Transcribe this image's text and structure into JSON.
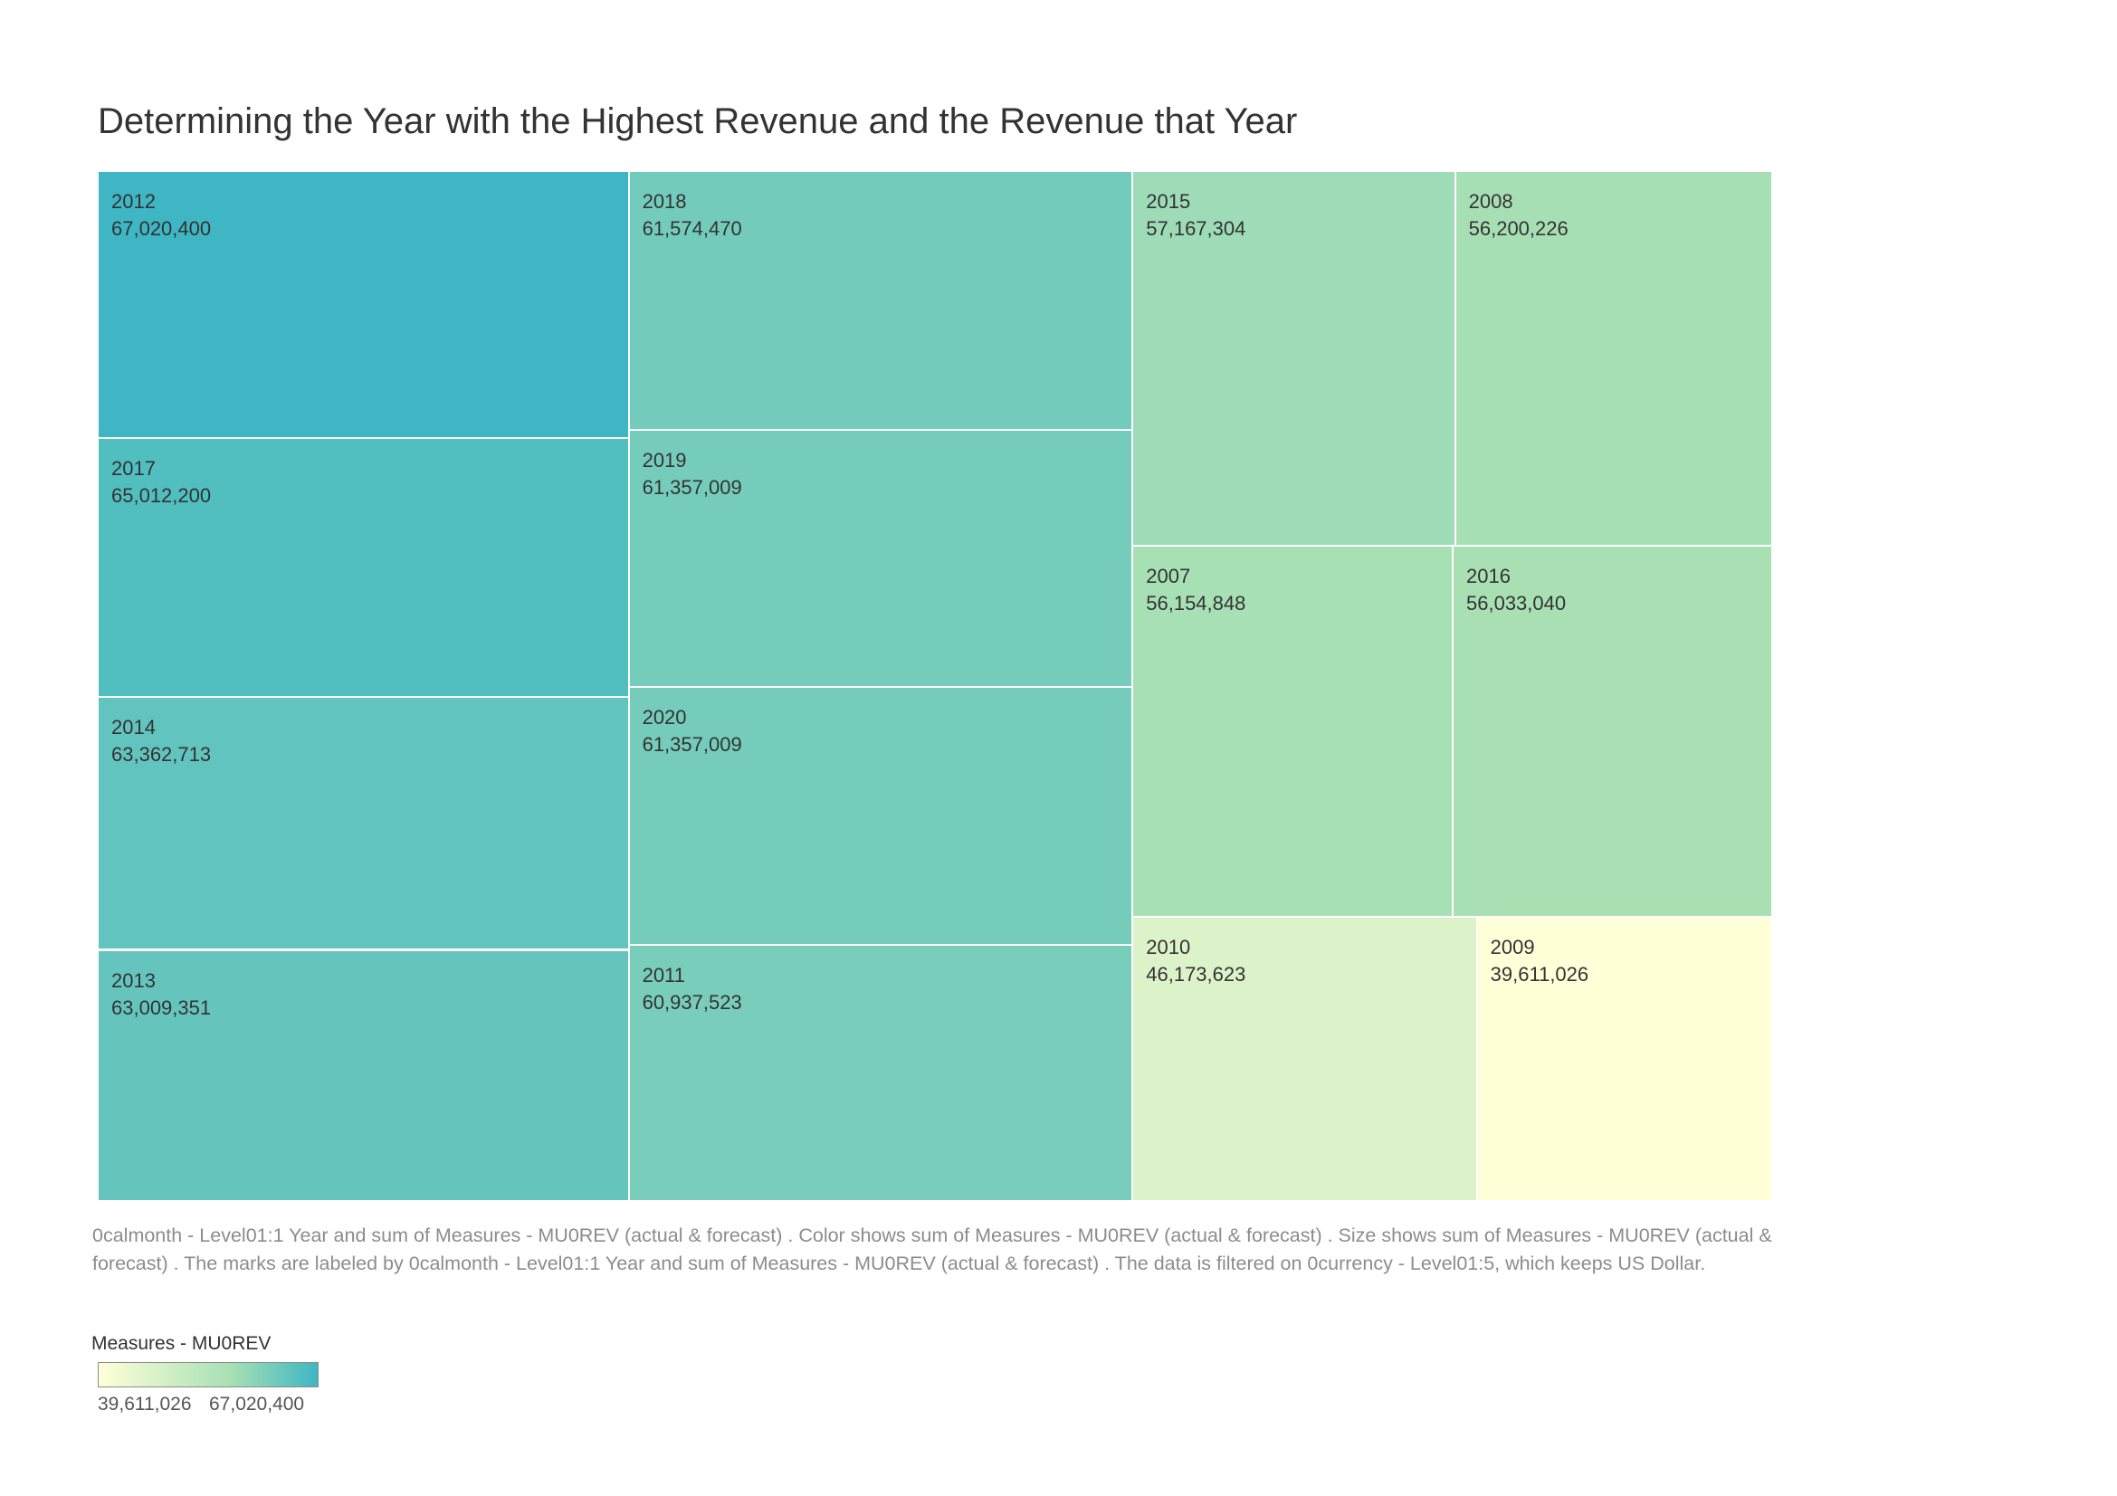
{
  "chart_data": {
    "type": "treemap",
    "title": "Determining the Year with the Highest Revenue and the Revenue that Year",
    "items": [
      {
        "year": "2012",
        "value": 67020400,
        "label": "67,020,400"
      },
      {
        "year": "2017",
        "value": 65012200,
        "label": "65,012,200"
      },
      {
        "year": "2014",
        "value": 63362713,
        "label": "63,362,713"
      },
      {
        "year": "2013",
        "value": 63009351,
        "label": "63,009,351"
      },
      {
        "year": "2018",
        "value": 61574470,
        "label": "61,574,470"
      },
      {
        "year": "2019",
        "value": 61357009,
        "label": "61,357,009"
      },
      {
        "year": "2020",
        "value": 61357009,
        "label": "61,357,009"
      },
      {
        "year": "2011",
        "value": 60937523,
        "label": "60,937,523"
      },
      {
        "year": "2015",
        "value": 57167304,
        "label": "57,167,304"
      },
      {
        "year": "2008",
        "value": 56200226,
        "label": "56,200,226"
      },
      {
        "year": "2007",
        "value": 56154848,
        "label": "56,154,848"
      },
      {
        "year": "2016",
        "value": 56033040,
        "label": "56,033,040"
      },
      {
        "year": "2010",
        "value": 46173623,
        "label": "46,173,623"
      },
      {
        "year": "2009",
        "value": 39611026,
        "label": "39,611,026"
      }
    ],
    "color_scale": {
      "low": "#ffffd8",
      "mid": "#a8e0b4",
      "high": "#3eb6c3"
    },
    "legend": {
      "title": "Measures - MU0REV",
      "min_label": "39,611,026",
      "max_label": "67,020,400",
      "min": 39611026,
      "max": 67020400
    }
  },
  "caption": "0calmonth - Level01:1 Year and sum of Measures - MU0REV (actual & forecast) .  Color shows sum of Measures - MU0REV (actual & forecast) .  Size shows sum of Measures - MU0REV (actual & forecast) .  The marks are labeled by 0calmonth - Level01:1 Year and sum of Measures - MU0REV (actual & forecast) . The data is filtered on 0currency - Level01:5, which keeps US Dollar."
}
